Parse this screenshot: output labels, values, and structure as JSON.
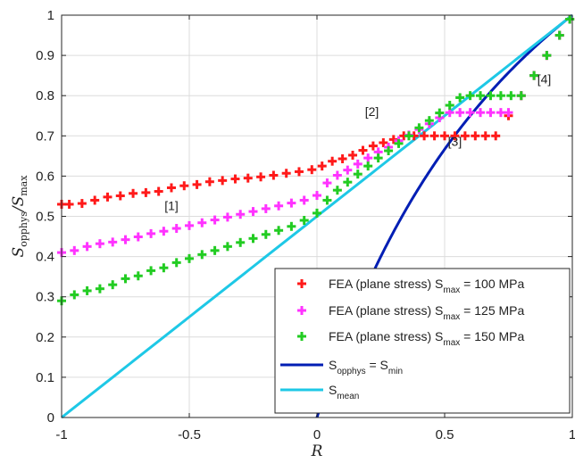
{
  "chart_data": {
    "type": "line",
    "xlabel": "R",
    "ylabel": {
      "base": "S",
      "sub": "opphys",
      "sep": "/",
      "base2": "S",
      "sub2": "max"
    },
    "xlim": [
      -1,
      1
    ],
    "ylim": [
      0,
      1
    ],
    "x_ticks": [
      -1,
      -0.5,
      0,
      0.5,
      1
    ],
    "x_tick_labels": [
      "-1",
      "-0.5",
      "0",
      "0.5",
      "1"
    ],
    "y_ticks": [
      0,
      0.1,
      0.2,
      0.3,
      0.4,
      0.5,
      0.6,
      0.7,
      0.8,
      0.9,
      1
    ],
    "y_tick_labels": [
      "0",
      "0.1",
      "0.2",
      "0.3",
      "0.4",
      "0.5",
      "0.6",
      "0.7",
      "0.8",
      "0.9",
      "1"
    ],
    "grid": true,
    "legend_position": "bottom-right",
    "annotations": [
      {
        "text": "[1]",
        "x": -0.57,
        "y": 0.515
      },
      {
        "text": "[2]",
        "x": 0.215,
        "y": 0.75
      },
      {
        "text": "[3]",
        "x": 0.54,
        "y": 0.675
      },
      {
        "text": "[4]",
        "x": 0.89,
        "y": 0.83
      }
    ],
    "series": [
      {
        "kind": "markers",
        "legend": {
          "prefix": "FEA (plane stress) S",
          "sub": "max",
          "suffix": " = 100 MPa"
        },
        "color": "#ff1a1a",
        "points": [
          [
            -1,
            0.53
          ],
          [
            -0.97,
            0.53
          ],
          [
            -0.92,
            0.532
          ],
          [
            -0.87,
            0.54
          ],
          [
            -0.82,
            0.548
          ],
          [
            -0.77,
            0.551
          ],
          [
            -0.72,
            0.557
          ],
          [
            -0.67,
            0.559
          ],
          [
            -0.62,
            0.562
          ],
          [
            -0.57,
            0.571
          ],
          [
            -0.52,
            0.576
          ],
          [
            -0.47,
            0.579
          ],
          [
            -0.42,
            0.586
          ],
          [
            -0.37,
            0.589
          ],
          [
            -0.32,
            0.593
          ],
          [
            -0.27,
            0.595
          ],
          [
            -0.22,
            0.598
          ],
          [
            -0.17,
            0.602
          ],
          [
            -0.12,
            0.607
          ],
          [
            -0.07,
            0.611
          ],
          [
            -0.02,
            0.616
          ],
          [
            0.02,
            0.625
          ],
          [
            0.06,
            0.637
          ],
          [
            0.1,
            0.643
          ],
          [
            0.14,
            0.652
          ],
          [
            0.18,
            0.664
          ],
          [
            0.22,
            0.675
          ],
          [
            0.26,
            0.683
          ],
          [
            0.3,
            0.691
          ],
          [
            0.34,
            0.7
          ],
          [
            0.38,
            0.7
          ],
          [
            0.42,
            0.7
          ],
          [
            0.46,
            0.7
          ],
          [
            0.5,
            0.7
          ],
          [
            0.54,
            0.7
          ],
          [
            0.58,
            0.7
          ],
          [
            0.62,
            0.7
          ],
          [
            0.66,
            0.7
          ],
          [
            0.7,
            0.7
          ],
          [
            0.75,
            0.75
          ],
          [
            0.8,
            0.8
          ],
          [
            0.85,
            0.85
          ],
          [
            0.9,
            0.9
          ],
          [
            0.95,
            0.95
          ],
          [
            0.99,
            0.99
          ]
        ]
      },
      {
        "kind": "markers",
        "legend": {
          "prefix": "FEA (plane stress) S",
          "sub": "max",
          "suffix": " = 125 MPa"
        },
        "color": "#ff33ff",
        "points": [
          [
            -1,
            0.41
          ],
          [
            -0.95,
            0.415
          ],
          [
            -0.9,
            0.425
          ],
          [
            -0.85,
            0.432
          ],
          [
            -0.8,
            0.436
          ],
          [
            -0.75,
            0.442
          ],
          [
            -0.7,
            0.449
          ],
          [
            -0.65,
            0.457
          ],
          [
            -0.6,
            0.463
          ],
          [
            -0.55,
            0.47
          ],
          [
            -0.5,
            0.477
          ],
          [
            -0.45,
            0.484
          ],
          [
            -0.4,
            0.491
          ],
          [
            -0.35,
            0.498
          ],
          [
            -0.3,
            0.505
          ],
          [
            -0.25,
            0.512
          ],
          [
            -0.2,
            0.519
          ],
          [
            -0.15,
            0.526
          ],
          [
            -0.1,
            0.533
          ],
          [
            -0.05,
            0.54
          ],
          [
            0,
            0.552
          ],
          [
            0.04,
            0.583
          ],
          [
            0.08,
            0.602
          ],
          [
            0.12,
            0.615
          ],
          [
            0.16,
            0.63
          ],
          [
            0.2,
            0.645
          ],
          [
            0.24,
            0.66
          ],
          [
            0.28,
            0.672
          ],
          [
            0.32,
            0.688
          ],
          [
            0.36,
            0.702
          ],
          [
            0.4,
            0.716
          ],
          [
            0.44,
            0.73
          ],
          [
            0.48,
            0.745
          ],
          [
            0.52,
            0.758
          ],
          [
            0.56,
            0.758
          ],
          [
            0.6,
            0.758
          ],
          [
            0.64,
            0.758
          ],
          [
            0.68,
            0.758
          ],
          [
            0.72,
            0.758
          ],
          [
            0.75,
            0.758
          ],
          [
            0.8,
            0.8
          ],
          [
            0.85,
            0.85
          ],
          [
            0.9,
            0.9
          ],
          [
            0.95,
            0.95
          ],
          [
            0.99,
            0.99
          ]
        ]
      },
      {
        "kind": "markers",
        "legend": {
          "prefix": "FEA (plane stress) S",
          "sub": "max",
          "suffix": " = 150 MPa"
        },
        "color": "#22cc22",
        "points": [
          [
            -1,
            0.29
          ],
          [
            -0.95,
            0.305
          ],
          [
            -0.9,
            0.315
          ],
          [
            -0.85,
            0.32
          ],
          [
            -0.8,
            0.33
          ],
          [
            -0.75,
            0.345
          ],
          [
            -0.7,
            0.352
          ],
          [
            -0.65,
            0.365
          ],
          [
            -0.6,
            0.372
          ],
          [
            -0.55,
            0.385
          ],
          [
            -0.5,
            0.395
          ],
          [
            -0.45,
            0.405
          ],
          [
            -0.4,
            0.415
          ],
          [
            -0.35,
            0.425
          ],
          [
            -0.3,
            0.435
          ],
          [
            -0.25,
            0.445
          ],
          [
            -0.2,
            0.455
          ],
          [
            -0.15,
            0.465
          ],
          [
            -0.1,
            0.475
          ],
          [
            -0.05,
            0.49
          ],
          [
            0,
            0.508
          ],
          [
            0.04,
            0.54
          ],
          [
            0.08,
            0.565
          ],
          [
            0.12,
            0.585
          ],
          [
            0.16,
            0.605
          ],
          [
            0.2,
            0.625
          ],
          [
            0.24,
            0.645
          ],
          [
            0.28,
            0.663
          ],
          [
            0.32,
            0.681
          ],
          [
            0.36,
            0.7
          ],
          [
            0.4,
            0.72
          ],
          [
            0.44,
            0.738
          ],
          [
            0.48,
            0.757
          ],
          [
            0.52,
            0.776
          ],
          [
            0.56,
            0.795
          ],
          [
            0.6,
            0.8
          ],
          [
            0.64,
            0.8
          ],
          [
            0.68,
            0.8
          ],
          [
            0.72,
            0.8
          ],
          [
            0.76,
            0.8
          ],
          [
            0.8,
            0.8
          ],
          [
            0.85,
            0.85
          ],
          [
            0.9,
            0.9
          ],
          [
            0.95,
            0.95
          ],
          [
            0.99,
            0.99
          ]
        ]
      },
      {
        "kind": "line",
        "legend": {
          "prefix": "S",
          "sub": "opphys",
          "suffix": " = S",
          "sub2": "min"
        },
        "color": "#001eb4",
        "points": [
          [
            0,
            0
          ],
          [
            1,
            1
          ]
        ],
        "formula": "2R/(1+R)"
      },
      {
        "kind": "line",
        "legend": {
          "prefix": "S",
          "sub": "mean",
          "suffix": ""
        },
        "color": "#1ec8e6",
        "points": [
          [
            -1,
            0
          ],
          [
            1,
            1
          ]
        ],
        "formula": "(1+R)/2"
      }
    ]
  }
}
